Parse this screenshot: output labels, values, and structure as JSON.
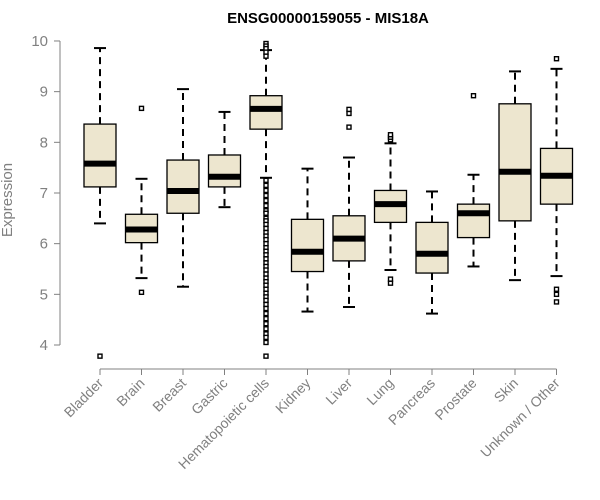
{
  "chart_data": {
    "type": "boxplot",
    "title": "ENSG00000159055 - MIS18A",
    "xlabel": "",
    "ylabel": "Expression",
    "ylim": [
      3.8,
      10.0
    ],
    "yticks": [
      4,
      5,
      6,
      7,
      8,
      9,
      10
    ],
    "box_color": "#ede6cf",
    "categories": [
      "Bladder",
      "Brain",
      "Breast",
      "Gastric",
      "Hematopoietic cells",
      "Kidney",
      "Liver",
      "Lung",
      "Pancreas",
      "Prostate",
      "Skin",
      "Unknown / Other"
    ],
    "boxes": [
      {
        "category": "Bladder",
        "whisker_low": 6.4,
        "q1": 7.12,
        "median": 7.58,
        "q3": 8.36,
        "whisker_high": 9.86,
        "outliers": [
          3.78
        ]
      },
      {
        "category": "Brain",
        "whisker_low": 5.32,
        "q1": 6.02,
        "median": 6.28,
        "q3": 6.58,
        "whisker_high": 7.28,
        "outliers": [
          5.04,
          8.67
        ]
      },
      {
        "category": "Breast",
        "whisker_low": 5.15,
        "q1": 6.6,
        "median": 7.04,
        "q3": 7.65,
        "whisker_high": 9.05,
        "outliers": []
      },
      {
        "category": "Gastric",
        "whisker_low": 6.72,
        "q1": 7.12,
        "median": 7.32,
        "q3": 7.75,
        "whisker_high": 8.6,
        "outliers": []
      },
      {
        "category": "Hematopoietic cells",
        "whisker_low": 7.3,
        "q1": 8.26,
        "median": 8.66,
        "q3": 8.92,
        "whisker_high": 9.82,
        "outliers": [
          9.95,
          9.9,
          9.85,
          9.78,
          9.7,
          7.25,
          7.15,
          7.05,
          6.95,
          6.85,
          6.75,
          6.65,
          6.6,
          6.5,
          6.45,
          6.38,
          6.3,
          6.22,
          6.15,
          6.08,
          6.0,
          5.92,
          5.85,
          5.78,
          5.7,
          5.62,
          5.55,
          5.48,
          5.4,
          5.32,
          5.25,
          5.18,
          5.1,
          5.02,
          4.95,
          4.88,
          4.8,
          4.72,
          4.62,
          4.52,
          4.42,
          4.32,
          4.22,
          4.15,
          4.05,
          3.78
        ]
      },
      {
        "category": "Kidney",
        "whisker_low": 4.66,
        "q1": 5.45,
        "median": 5.84,
        "q3": 6.48,
        "whisker_high": 7.48,
        "outliers": []
      },
      {
        "category": "Liver",
        "whisker_low": 4.75,
        "q1": 5.66,
        "median": 6.1,
        "q3": 6.55,
        "whisker_high": 7.7,
        "outliers": [
          8.3,
          8.57,
          8.65
        ]
      },
      {
        "category": "Lung",
        "whisker_low": 5.48,
        "q1": 6.42,
        "median": 6.78,
        "q3": 7.05,
        "whisker_high": 7.98,
        "outliers": [
          5.22,
          5.3,
          8.05,
          8.1,
          8.15
        ]
      },
      {
        "category": "Pancreas",
        "whisker_low": 4.62,
        "q1": 5.42,
        "median": 5.8,
        "q3": 6.42,
        "whisker_high": 7.03,
        "outliers": []
      },
      {
        "category": "Prostate",
        "whisker_low": 5.55,
        "q1": 6.12,
        "median": 6.6,
        "q3": 6.78,
        "whisker_high": 7.36,
        "outliers": [
          8.92
        ]
      },
      {
        "category": "Skin",
        "whisker_low": 5.28,
        "q1": 6.45,
        "median": 7.42,
        "q3": 8.76,
        "whisker_high": 9.4,
        "outliers": []
      },
      {
        "category": "Unknown / Other",
        "whisker_low": 5.36,
        "q1": 6.78,
        "median": 7.34,
        "q3": 7.88,
        "whisker_high": 9.45,
        "outliers": [
          4.85,
          5.0,
          5.1,
          9.65
        ]
      }
    ]
  }
}
